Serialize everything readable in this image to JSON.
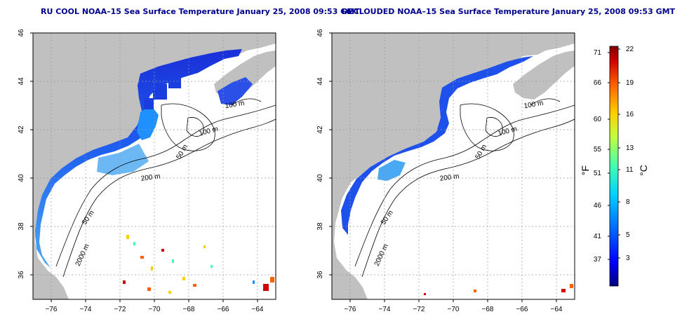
{
  "left_panel": {
    "title": "RU COOL NOAA–15 Sea Surface Temperature January 25, 2008 09:53 GMT",
    "y_ticks": [
      "46",
      "44",
      "42",
      "40",
      "38",
      "36"
    ],
    "x_ticks": [
      "−76",
      "−74",
      "−72",
      "−70",
      "−68",
      "−66",
      "−64"
    ],
    "contour_labels": [
      "100 m",
      "100 m",
      "50 m",
      "200 m",
      "50 m",
      "2000 m"
    ]
  },
  "right_panel": {
    "title": "DECLOUDED NOAA–15 Sea Surface Temperature January 25, 2008 09:53 GMT",
    "y_ticks": [
      "46",
      "44",
      "42",
      "40",
      "38",
      "36"
    ],
    "x_ticks": [
      "−76",
      "−74",
      "−72",
      "−70",
      "−68",
      "−66",
      "−64"
    ],
    "contour_labels": [
      "100 m",
      "100 m",
      "50 m",
      "200 m",
      "50 m",
      "2000 m"
    ]
  },
  "colorbar": {
    "f_ticks": [
      "71",
      "66",
      "60",
      "55",
      "51",
      "46",
      "41",
      "37"
    ],
    "c_ticks": [
      "22",
      "19",
      "16",
      "13",
      "11",
      "8",
      "5",
      "3"
    ],
    "f_label": "°F",
    "c_label": "°C",
    "colors": [
      "#000080",
      "#0000ff",
      "#0070ff",
      "#00d0ff",
      "#40ffb0",
      "#c0ff40",
      "#ffd000",
      "#ff6000",
      "#d00000",
      "#800000"
    ]
  },
  "colors": {
    "land": "#c0c0c0",
    "title": "#00008b",
    "sst_cold": "#0000cd",
    "sst_mid": "#1e90ff",
    "sst_light": "#87cefa",
    "contour": "#000000",
    "grid": "#9a9a9a"
  }
}
